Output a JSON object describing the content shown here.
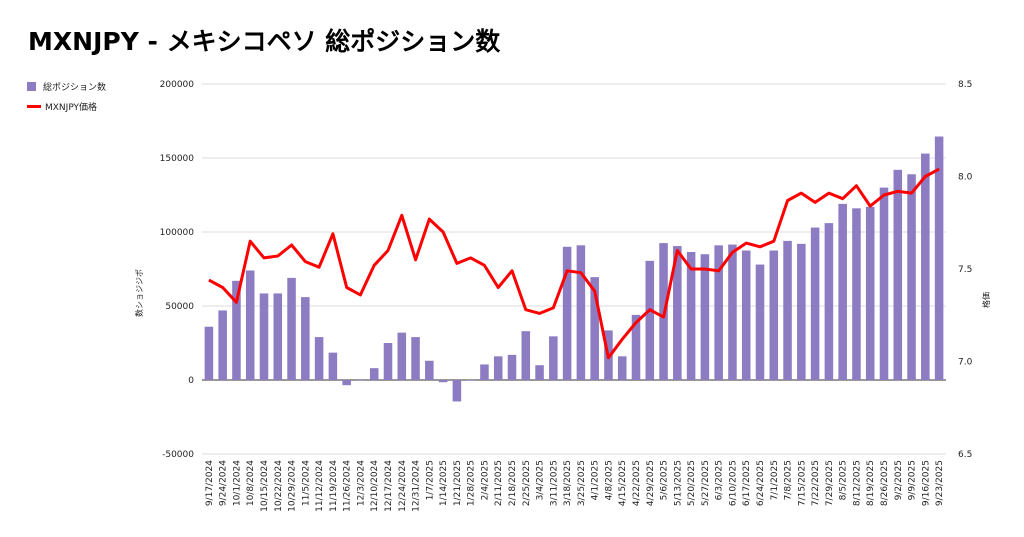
{
  "title": "MXNJPY - メキシコペソ 総ポジション数",
  "legend": [
    {
      "label": "総ポジション数",
      "color": "#8e7cc3",
      "kind": "bar"
    },
    {
      "label": "MXNJPY価格",
      "color": "#ff0000",
      "kind": "line"
    }
  ],
  "chart_data": {
    "type": "bar",
    "categories": [
      "9/17/2024",
      "9/24/2024",
      "10/1/2024",
      "10/8/2024",
      "10/15/2024",
      "10/22/2024",
      "10/29/2024",
      "11/5/2024",
      "11/12/2024",
      "11/19/2024",
      "11/26/2024",
      "12/3/2024",
      "12/10/2024",
      "12/17/2024",
      "12/24/2024",
      "12/31/2024",
      "1/7/2025",
      "1/14/2025",
      "1/21/2025",
      "1/28/2025",
      "2/4/2025",
      "2/11/2025",
      "2/18/2025",
      "2/25/2025",
      "3/4/2025",
      "3/11/2025",
      "3/18/2025",
      "3/25/2025",
      "4/1/2025",
      "4/8/2025",
      "4/15/2025",
      "4/22/2025",
      "4/29/2025",
      "5/6/2025",
      "5/13/2025",
      "5/20/2025",
      "5/27/2025",
      "6/3/2025",
      "6/10/2025",
      "6/17/2025",
      "6/24/2025",
      "7/1/2025",
      "7/8/2025",
      "7/15/2025",
      "7/22/2025",
      "7/29/2025",
      "8/5/2025",
      "8/12/2025",
      "8/19/2025",
      "8/26/2025",
      "9/2/2025",
      "9/9/2025",
      "9/16/2025",
      "9/23/2025"
    ],
    "series": [
      {
        "name": "総ポジション数",
        "type": "bar",
        "axis": "left",
        "color": "#8e7cc3",
        "values": [
          36000,
          47000,
          67000,
          74000,
          58500,
          58500,
          69000,
          56000,
          29000,
          18500,
          -3500,
          -500,
          8000,
          25000,
          32000,
          29000,
          13000,
          -1500,
          -14500,
          -500,
          10500,
          16000,
          17000,
          33000,
          10000,
          29500,
          90000,
          91000,
          69500,
          33500,
          16000,
          44000,
          80500,
          92500,
          90500,
          86500,
          85000,
          91000,
          91500,
          87500,
          78000,
          87500,
          94000,
          92000,
          103000,
          106000,
          119000,
          116000,
          117000,
          130000,
          142000,
          139000,
          153000,
          164500
        ]
      },
      {
        "name": "MXNJPY価格",
        "type": "line",
        "axis": "right",
        "color": "#ff0000",
        "values": [
          7.44,
          7.4,
          7.32,
          7.65,
          7.56,
          7.57,
          7.63,
          7.54,
          7.51,
          7.69,
          7.4,
          7.36,
          7.52,
          7.6,
          7.79,
          7.55,
          7.77,
          7.7,
          7.53,
          7.56,
          7.52,
          7.4,
          7.49,
          7.28,
          7.26,
          7.29,
          7.49,
          7.48,
          7.38,
          7.02,
          7.12,
          7.21,
          7.28,
          7.24,
          7.6,
          7.5,
          7.5,
          7.49,
          7.59,
          7.64,
          7.62,
          7.65,
          7.87,
          7.91,
          7.86,
          7.91,
          7.88,
          7.95,
          7.84,
          7.9,
          7.92,
          7.91,
          8.0,
          8.04
        ]
      }
    ],
    "ylabel": "数ショジジポ",
    "y2label": "格価",
    "ylim": [
      -50000,
      200000
    ],
    "y2lim": [
      6.5,
      8.5
    ],
    "yticks": [
      "200000",
      "150000",
      "100000",
      "50000",
      "0",
      "-50000"
    ],
    "y2ticks": [
      "8.5",
      "8.0",
      "7.5",
      "7.0",
      "6.5"
    ],
    "grid": true,
    "legend_position": "top-left"
  }
}
